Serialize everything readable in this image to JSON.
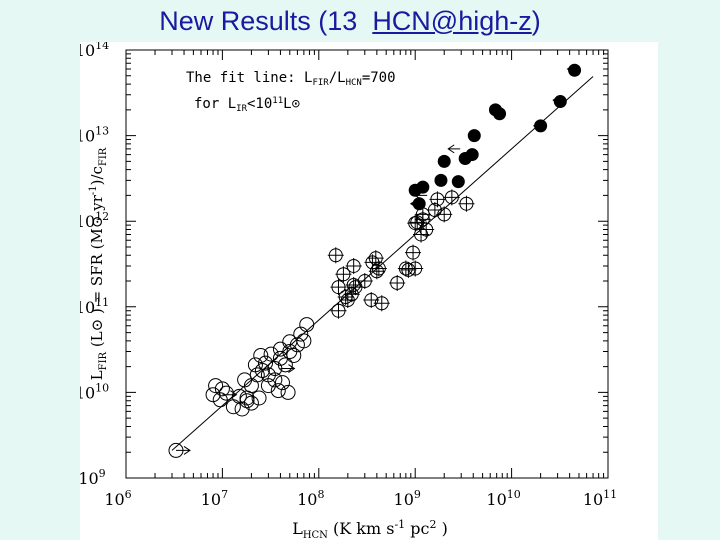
{
  "slide": {
    "title_prefix": "New Results (13  ",
    "title_link": "HCN@high-z",
    "title_suffix": ")"
  },
  "chart_data": {
    "type": "scatter",
    "log_x": true,
    "log_y": true,
    "xlim": [
      1000000,
      100000000000
    ],
    "ylim": [
      1000000000,
      100000000000000
    ],
    "xlabel": "L_HCN (K km s^-1 pc^2 )",
    "ylabel": "L_FIR (L⊙ ) = SFR (M⊙ yr^-1)/c_FIR",
    "x_ticks": [
      {
        "base": "10",
        "exp": "6",
        "value": 1000000
      },
      {
        "base": "10",
        "exp": "7",
        "value": 10000000
      },
      {
        "base": "10",
        "exp": "8",
        "value": 100000000
      },
      {
        "base": "10",
        "exp": "9",
        "value": 1000000000
      },
      {
        "base": "10",
        "exp": "10",
        "value": 10000000000
      },
      {
        "base": "10",
        "exp": "11",
        "value": 100000000000
      }
    ],
    "y_ticks": [
      {
        "base": "10",
        "exp": "9",
        "value": 1000000000
      },
      {
        "base": "10",
        "exp": "10",
        "value": 10000000000
      },
      {
        "base": "10",
        "exp": "11",
        "value": 100000000000
      },
      {
        "base": "10",
        "exp": "12",
        "value": 1000000000000
      },
      {
        "base": "10",
        "exp": "13",
        "value": 10000000000000
      },
      {
        "base": "10",
        "exp": "14",
        "value": 100000000000000
      }
    ],
    "annotation_line1": {
      "pre": "The fit line: L",
      "sub1": "FIR",
      "mid": "/L",
      "sub2": "HCN",
      "post": "=700"
    },
    "annotation_line2": {
      "pre": "for L",
      "sub": "IR",
      "mid": "<10",
      "sup": "11",
      "post": "L⊙"
    },
    "fit_line": {
      "ratio": 700,
      "x_range": [
        3000000,
        70000000000
      ]
    },
    "series": [
      {
        "marker": "open-circle",
        "points": [
          [
            3300000,
            2100000000
          ],
          [
            8000000,
            9400000000
          ],
          [
            9500000,
            8200000000
          ],
          [
            11000000,
            9800000000
          ],
          [
            13000000,
            6800000000
          ],
          [
            16000000,
            6400000000
          ],
          [
            8500000,
            12000000000
          ],
          [
            10000000,
            11000000000
          ],
          [
            15000000,
            9000000000
          ],
          [
            18000000,
            8000000000
          ],
          [
            20000000,
            7500000000
          ],
          [
            17000000,
            14000000000
          ],
          [
            20000000,
            12000000000
          ],
          [
            23000000,
            16000000000
          ],
          [
            26000000,
            18000000000
          ],
          [
            22000000,
            21000000000
          ],
          [
            28000000,
            22000000000
          ],
          [
            30000000,
            16000000000
          ],
          [
            35000000,
            19000000000
          ],
          [
            40000000,
            25000000000
          ],
          [
            32000000,
            28000000000
          ],
          [
            45000000,
            21000000000
          ],
          [
            50000000,
            30000000000
          ],
          [
            40000000,
            32000000000
          ],
          [
            60000000,
            36000000000
          ],
          [
            25000000,
            27000000000
          ],
          [
            35000000,
            14000000000
          ],
          [
            42000000,
            13000000000
          ],
          [
            48000000,
            10000000000
          ],
          [
            38000000,
            10500000000
          ],
          [
            30000000,
            12000000000
          ],
          [
            55000000,
            27000000000
          ],
          [
            65000000,
            48000000000
          ],
          [
            75000000,
            62000000000
          ],
          [
            70000000,
            40000000000
          ],
          [
            50000000,
            39000000000
          ],
          [
            24000000,
            8600000000
          ],
          [
            18000000,
            8600000000
          ]
        ]
      },
      {
        "marker": "open-circle-cross",
        "points": [
          [
            150000000,
            400000000000
          ],
          [
            180000000,
            240000000000
          ],
          [
            230000000,
            300000000000
          ],
          [
            300000000,
            200000000000
          ],
          [
            160000000,
            90000000000
          ],
          [
            220000000,
            140000000000
          ],
          [
            160000000,
            170000000000
          ],
          [
            190000000,
            130000000000
          ],
          [
            200000000,
            120000000000
          ],
          [
            240000000,
            170000000000
          ],
          [
            230000000,
            180000000000
          ],
          [
            360000000,
            330000000000
          ],
          [
            400000000,
            260000000000
          ],
          [
            420000000,
            280000000000
          ],
          [
            390000000,
            370000000000
          ],
          [
            450000000,
            110000000000
          ],
          [
            350000000,
            120000000000
          ],
          [
            650000000,
            190000000000
          ],
          [
            800000000,
            280000000000
          ],
          [
            850000000,
            270000000000
          ],
          [
            950000000,
            430000000000
          ],
          [
            1000000000,
            280000000000
          ],
          [
            1150000000,
            700000000000
          ],
          [
            1300000000,
            800000000000
          ],
          [
            1600000000,
            1350000000000
          ],
          [
            2000000000,
            1200000000000
          ],
          [
            3400000000,
            1600000000000
          ],
          [
            1700000000,
            1800000000000
          ],
          [
            1200000000,
            1200000000000
          ],
          [
            1000000000,
            950000000000
          ],
          [
            1050000000,
            970000000000
          ],
          [
            1200000000,
            1050000000000
          ],
          [
            2400000000,
            1900000000000
          ]
        ]
      },
      {
        "marker": "filled-circle",
        "points": [
          [
            45000000000,
            58000000000000
          ],
          [
            32000000000,
            25000000000000
          ],
          [
            20000000000,
            13000000000000
          ],
          [
            7500000000,
            18000000000000
          ],
          [
            6800000000,
            20000000000000
          ],
          [
            4100000000,
            10000000000000
          ],
          [
            3900000000,
            6000000000000
          ],
          [
            3300000000,
            5400000000000
          ],
          [
            2000000000,
            5000000000000
          ],
          [
            1850000000,
            3000000000000
          ],
          [
            1200000000,
            2500000000000
          ],
          [
            1000000000,
            2300000000000
          ],
          [
            2800000000,
            2900000000000
          ],
          [
            1100000000,
            1600000000000
          ]
        ]
      },
      {
        "marker": "upper-limit-arrow",
        "points": [
          [
            38000000000,
            60000000000000
          ],
          [
            27000000000,
            26000000000000
          ],
          [
            17000000000,
            13000000000000
          ],
          [
            6500000000,
            19000000000000
          ],
          [
            2200000000,
            7000000000000
          ],
          [
            1000000000,
            2000000000000
          ],
          [
            900000000,
            1600000000000
          ]
        ]
      },
      {
        "marker": "right-arrow",
        "points": [
          [
            3300000,
            2100000000
          ],
          [
            10000000,
            9400000000
          ],
          [
            40000000,
            19000000000
          ]
        ]
      }
    ]
  }
}
